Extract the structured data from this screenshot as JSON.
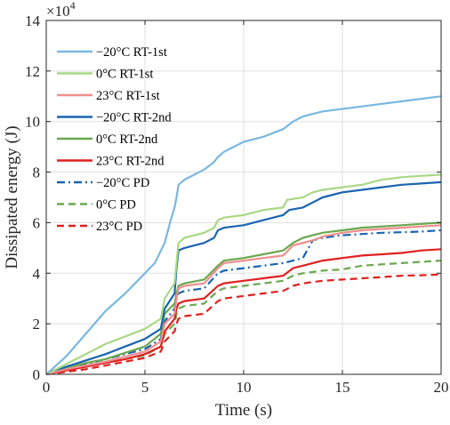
{
  "chart_data": {
    "type": "line",
    "title": "",
    "xlabel": "Time (s)",
    "ylabel": "Dissipated energy (J)",
    "y_exponent_label": "×10",
    "y_exponent_power": "4",
    "xlim": [
      0,
      20
    ],
    "ylim": [
      0,
      14
    ],
    "xticks": [
      0,
      5,
      10,
      15,
      20
    ],
    "yticks": [
      0,
      2,
      4,
      6,
      8,
      10,
      12,
      14
    ],
    "grid": true,
    "legend_position": "top-left",
    "series": [
      {
        "name": "−20°C RT-1st",
        "color": "#7ab8e0",
        "dash": "solid",
        "x": [
          0,
          1,
          2,
          3,
          4,
          5,
          5.5,
          6,
          6.3,
          6.5,
          6.6,
          6.7,
          7,
          7.5,
          8,
          8.5,
          8.7,
          9,
          9.5,
          10,
          11,
          12,
          12.5,
          13,
          14,
          15,
          16,
          17,
          18,
          19,
          20
        ],
        "y": [
          0,
          0.7,
          1.6,
          2.5,
          3.2,
          4.0,
          4.4,
          5.2,
          6.1,
          6.6,
          7.0,
          7.5,
          7.7,
          7.9,
          8.1,
          8.4,
          8.6,
          8.8,
          9.0,
          9.2,
          9.4,
          9.7,
          10.0,
          10.2,
          10.4,
          10.5,
          10.6,
          10.7,
          10.8,
          10.9,
          11.0
        ]
      },
      {
        "name": "0°C RT-1st",
        "color": "#a8d884",
        "dash": "solid",
        "x": [
          0,
          1,
          2,
          3,
          4,
          5,
          5.8,
          6,
          6.5,
          6.6,
          6.7,
          7,
          8,
          8.5,
          8.7,
          9,
          10,
          11,
          12,
          12.2,
          13,
          13.5,
          14,
          15,
          16,
          17,
          18,
          19,
          20
        ],
        "y": [
          0,
          0.4,
          0.8,
          1.2,
          1.5,
          1.8,
          2.2,
          3.0,
          3.6,
          4.4,
          5.2,
          5.4,
          5.6,
          5.8,
          6.1,
          6.2,
          6.3,
          6.5,
          6.6,
          6.9,
          7.0,
          7.2,
          7.3,
          7.4,
          7.5,
          7.7,
          7.8,
          7.85,
          7.9
        ]
      },
      {
        "name": "23°C RT-1st",
        "color": "#ef8e8e",
        "dash": "solid",
        "x": [
          0,
          1,
          2,
          3,
          4,
          5,
          5.8,
          6,
          6.5,
          6.6,
          6.7,
          7,
          8,
          8.7,
          9,
          10,
          11,
          12,
          12.5,
          13,
          13.5,
          14,
          15,
          16,
          17,
          18,
          19,
          20
        ],
        "y": [
          0,
          0.2,
          0.35,
          0.5,
          0.7,
          0.9,
          1.3,
          2.0,
          2.4,
          3.0,
          3.4,
          3.5,
          3.6,
          4.2,
          4.4,
          4.5,
          4.6,
          4.7,
          5.1,
          5.2,
          5.3,
          5.45,
          5.6,
          5.7,
          5.75,
          5.8,
          5.85,
          5.9
        ]
      },
      {
        "name": "−20°C RT-2nd",
        "color": "#1a64b0",
        "dash": "solid",
        "x": [
          0,
          1,
          2,
          3,
          4,
          5,
          5.8,
          6,
          6.5,
          6.6,
          6.7,
          7,
          8,
          8.5,
          8.7,
          9,
          10,
          11,
          12,
          12.3,
          13,
          13.5,
          14,
          15,
          16,
          17,
          18,
          19,
          20
        ],
        "y": [
          0,
          0.3,
          0.55,
          0.8,
          1.1,
          1.4,
          1.8,
          2.6,
          3.2,
          4.2,
          4.9,
          5.0,
          5.2,
          5.4,
          5.7,
          5.8,
          5.9,
          6.1,
          6.3,
          6.5,
          6.6,
          6.8,
          7.0,
          7.2,
          7.3,
          7.4,
          7.5,
          7.55,
          7.6
        ]
      },
      {
        "name": "0°C RT-2nd",
        "color": "#6aa84f",
        "dash": "solid",
        "x": [
          0,
          1,
          2,
          3,
          4,
          5,
          5.8,
          6,
          6.5,
          6.6,
          6.7,
          7,
          8,
          8.7,
          9,
          10,
          11,
          12,
          12.5,
          13,
          13.5,
          14,
          15,
          16,
          17,
          18,
          19,
          20
        ],
        "y": [
          0,
          0.25,
          0.45,
          0.6,
          0.85,
          1.1,
          1.6,
          2.4,
          2.8,
          3.2,
          3.5,
          3.6,
          3.75,
          4.3,
          4.5,
          4.6,
          4.75,
          4.9,
          5.2,
          5.4,
          5.5,
          5.6,
          5.7,
          5.8,
          5.85,
          5.9,
          5.95,
          6.0
        ]
      },
      {
        "name": "23°C RT-2nd",
        "color": "#e02020",
        "dash": "solid",
        "x": [
          0,
          1,
          2,
          3,
          4,
          5,
          5.8,
          6,
          6.5,
          6.6,
          6.7,
          7,
          8,
          8.7,
          9,
          10,
          11,
          12,
          12.5,
          13,
          13.5,
          14,
          15,
          16,
          17,
          18,
          19,
          20
        ],
        "y": [
          0,
          0.15,
          0.3,
          0.45,
          0.6,
          0.8,
          1.1,
          1.7,
          2.2,
          2.6,
          2.8,
          2.9,
          3.0,
          3.5,
          3.6,
          3.7,
          3.8,
          3.9,
          4.2,
          4.3,
          4.4,
          4.5,
          4.6,
          4.7,
          4.75,
          4.8,
          4.9,
          4.95
        ]
      },
      {
        "name": "−20°C PD",
        "color": "#1a64b0",
        "dash": "dashdot",
        "x": [
          0,
          1,
          2,
          3,
          4,
          5,
          5.8,
          6,
          6.5,
          6.6,
          6.7,
          7,
          8,
          8.7,
          9,
          10,
          11,
          12,
          12.5,
          13,
          13.5,
          14,
          15,
          16,
          17,
          18,
          19,
          20
        ],
        "y": [
          0,
          0.2,
          0.4,
          0.6,
          0.8,
          1.0,
          1.4,
          2.1,
          2.6,
          3.0,
          3.2,
          3.3,
          3.4,
          4.0,
          4.1,
          4.2,
          4.3,
          4.4,
          4.5,
          4.6,
          5.3,
          5.4,
          5.5,
          5.55,
          5.6,
          5.62,
          5.65,
          5.7
        ]
      },
      {
        "name": "0°C PD",
        "color": "#6aa84f",
        "dash": "dashed",
        "x": [
          0,
          1,
          2,
          3,
          4,
          5,
          5.8,
          6,
          6.5,
          6.6,
          6.7,
          7,
          8,
          8.7,
          9,
          10,
          11,
          12,
          12.5,
          13,
          13.5,
          14,
          15,
          16,
          17,
          18,
          19,
          20
        ],
        "y": [
          0,
          0.15,
          0.3,
          0.45,
          0.6,
          0.75,
          1.1,
          1.6,
          2.0,
          2.4,
          2.6,
          2.7,
          2.8,
          3.3,
          3.4,
          3.5,
          3.6,
          3.7,
          3.9,
          4.0,
          4.05,
          4.1,
          4.15,
          4.3,
          4.35,
          4.4,
          4.45,
          4.5
        ]
      },
      {
        "name": "23°C PD",
        "color": "#e02020",
        "dash": "dashed",
        "x": [
          0,
          1,
          2,
          3,
          4,
          5,
          5.8,
          6,
          6.5,
          6.6,
          6.7,
          7,
          8,
          8.7,
          9,
          10,
          11,
          12,
          12.5,
          13,
          13.5,
          14,
          15,
          16,
          17,
          18,
          19,
          20
        ],
        "y": [
          0,
          0.1,
          0.2,
          0.35,
          0.5,
          0.65,
          0.9,
          1.3,
          1.7,
          2.0,
          2.2,
          2.3,
          2.4,
          2.9,
          3.0,
          3.1,
          3.2,
          3.3,
          3.5,
          3.6,
          3.65,
          3.7,
          3.75,
          3.8,
          3.85,
          3.9,
          3.92,
          3.95
        ]
      }
    ]
  }
}
